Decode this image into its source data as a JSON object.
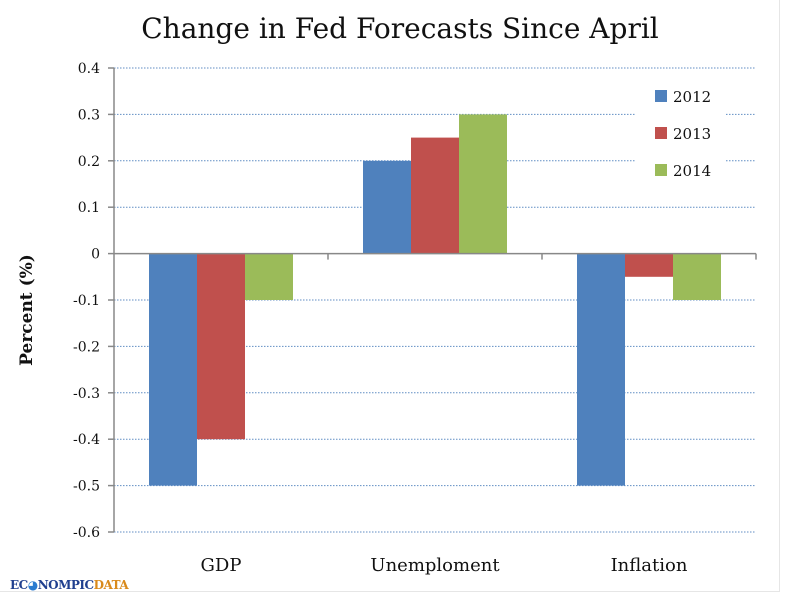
{
  "chart_data": {
    "type": "bar",
    "title": "Change in Fed Forecasts Since April",
    "xlabel": "",
    "ylabel": "Percent (%)",
    "categories": [
      "GDP",
      "Unemploment",
      "Inflation"
    ],
    "series": [
      {
        "name": "2012",
        "color": "#4F81BD",
        "values": [
          -0.5,
          0.2,
          -0.5
        ]
      },
      {
        "name": "2013",
        "color": "#C0504D",
        "values": [
          -0.4,
          0.25,
          -0.05
        ]
      },
      {
        "name": "2014",
        "color": "#9BBB59",
        "values": [
          -0.1,
          0.3,
          -0.1
        ]
      }
    ],
    "ylim": [
      -0.6,
      0.4
    ],
    "yticks": [
      "0.4",
      "0.3",
      "0.2",
      "0.1",
      "0",
      "-0.1",
      "-0.2",
      "-0.3",
      "-0.4",
      "-0.5",
      "-0.6"
    ],
    "grid": true,
    "legend_position": "top-right"
  },
  "branding": {
    "logo_part1": "ECONOMIC",
    "logo_part2": "DATA"
  },
  "logo": {
    "left": "EC",
    "mid": "◕",
    "right": "NOMPIC",
    "accent": "DATA"
  }
}
